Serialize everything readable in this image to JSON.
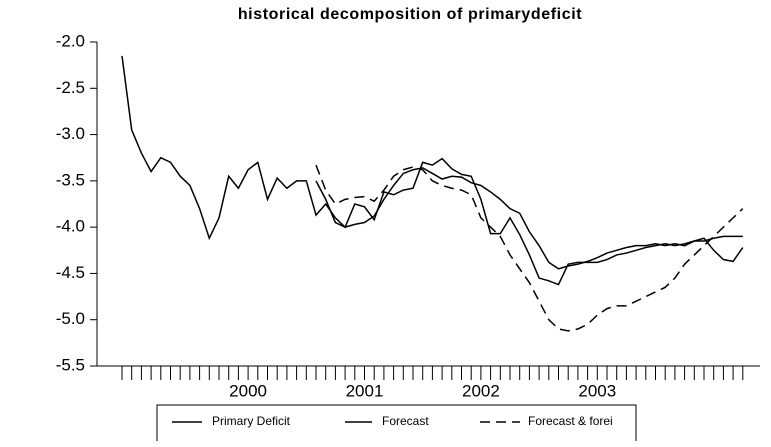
{
  "chart_data": {
    "type": "line",
    "title": "historical decomposition of primarydeficit",
    "categories": [
      null,
      null,
      null,
      null,
      null,
      null,
      null,
      null,
      null,
      null,
      null,
      null,
      null,
      "2000",
      null,
      null,
      null,
      null,
      null,
      null,
      null,
      null,
      null,
      null,
      null,
      "2001",
      null,
      null,
      null,
      null,
      null,
      null,
      null,
      null,
      null,
      null,
      null,
      "2002",
      null,
      null,
      null,
      null,
      null,
      null,
      null,
      null,
      null,
      null,
      null,
      "2003",
      null,
      null,
      null,
      null,
      null,
      null,
      null,
      null,
      null,
      null,
      null,
      null,
      null,
      null,
      null
    ],
    "series": [
      {
        "name": "Primary Deficit",
        "color": "#000000",
        "dash": "solid",
        "values": [
          -2.15,
          -2.95,
          -3.2,
          -3.4,
          -3.25,
          -3.3,
          -3.45,
          -3.55,
          -3.8,
          -4.12,
          -3.9,
          -3.45,
          -3.58,
          -3.38,
          -3.3,
          -3.7,
          -3.47,
          -3.58,
          -3.5,
          -3.5,
          -3.87,
          -3.75,
          -3.9,
          -4.0,
          -3.75,
          -3.78,
          -3.92,
          -3.62,
          -3.65,
          -3.6,
          -3.58,
          -3.3,
          -3.33,
          -3.26,
          -3.37,
          -3.43,
          -3.45,
          -3.7,
          -4.07,
          -4.07,
          -3.9,
          -4.08,
          -4.3,
          -4.55,
          -4.58,
          -4.62,
          -4.4,
          -4.38,
          -4.38,
          -4.38,
          -4.35,
          -4.3,
          -4.28,
          -4.25,
          -4.22,
          -4.2,
          -4.18,
          -4.2,
          -4.18,
          -4.15,
          -4.12,
          -4.25,
          -4.35,
          -4.37,
          -4.22
        ]
      },
      {
        "name": "Forecast",
        "color": "#000000",
        "dash": "solid",
        "values": [
          null,
          null,
          null,
          null,
          null,
          null,
          null,
          null,
          null,
          null,
          null,
          null,
          null,
          null,
          null,
          null,
          null,
          null,
          null,
          null,
          -3.5,
          -3.7,
          -3.95,
          -4.0,
          -3.97,
          -3.95,
          -3.88,
          -3.7,
          -3.55,
          -3.42,
          -3.38,
          -3.36,
          -3.42,
          -3.48,
          -3.45,
          -3.46,
          -3.52,
          -3.55,
          -3.62,
          -3.7,
          -3.8,
          -3.85,
          -4.05,
          -4.2,
          -4.38,
          -4.45,
          -4.42,
          -4.4,
          -4.37,
          -4.33,
          -4.28,
          -4.25,
          -4.22,
          -4.2,
          -4.2,
          -4.18,
          -4.2,
          -4.18,
          -4.2,
          -4.15,
          -4.15,
          -4.12,
          -4.1,
          -4.1,
          -4.1
        ]
      },
      {
        "name": "Forecast & forei",
        "color": "#000000",
        "dash": "dashed",
        "values": [
          null,
          null,
          null,
          null,
          null,
          null,
          null,
          null,
          null,
          null,
          null,
          null,
          null,
          null,
          null,
          null,
          null,
          null,
          null,
          null,
          -3.33,
          -3.6,
          -3.75,
          -3.7,
          -3.68,
          -3.67,
          -3.72,
          -3.6,
          -3.45,
          -3.38,
          -3.35,
          -3.38,
          -3.5,
          -3.55,
          -3.58,
          -3.6,
          -3.65,
          -3.9,
          -4.0,
          -4.1,
          -4.3,
          -4.45,
          -4.6,
          -4.8,
          -5.0,
          -5.1,
          -5.12,
          -5.1,
          -5.05,
          -4.95,
          -4.88,
          -4.85,
          -4.85,
          -4.8,
          -4.75,
          -4.7,
          -4.65,
          -4.55,
          -4.4,
          -4.3,
          -4.2,
          -4.1,
          -4.0,
          -3.9,
          -3.8
        ]
      }
    ],
    "ylim": [
      -5.5,
      -2.0
    ],
    "yticks": [
      {
        "value": -2.0,
        "label": "-2.0"
      },
      {
        "value": -2.5,
        "label": "-2.5"
      },
      {
        "value": -3.0,
        "label": "-3.0"
      },
      {
        "value": -3.5,
        "label": "-3.5"
      },
      {
        "value": -4.0,
        "label": "-4.0"
      },
      {
        "value": -4.5,
        "label": "-4.5"
      },
      {
        "value": -5.0,
        "label": "-5.0"
      },
      {
        "value": -5.5,
        "label": "-5.5"
      }
    ],
    "grid": false,
    "legend": "bottom"
  }
}
